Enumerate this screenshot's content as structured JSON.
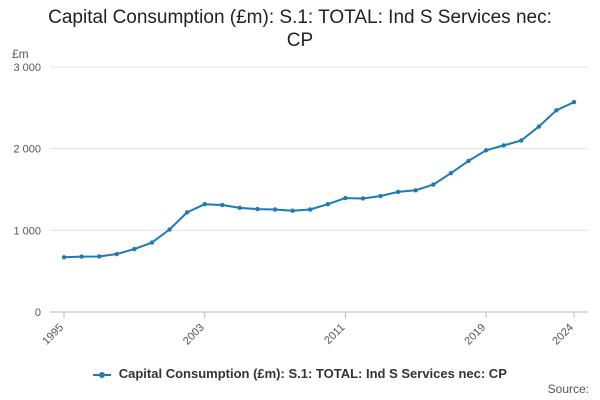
{
  "chart_data": {
    "type": "line",
    "title_line1": "Capital Consumption (£m): S.1: TOTAL: Ind S Services nec:",
    "title_line2": "CP",
    "ylabel": "£m",
    "xlabel": "",
    "x": [
      1995,
      1996,
      1997,
      1998,
      1999,
      2000,
      2001,
      2002,
      2003,
      2004,
      2005,
      2006,
      2007,
      2008,
      2009,
      2010,
      2011,
      2012,
      2013,
      2014,
      2015,
      2016,
      2017,
      2018,
      2019,
      2020,
      2021,
      2022,
      2023,
      2024
    ],
    "series": [
      {
        "name": "Capital Consumption (£m): S.1: TOTAL: Ind S Services nec: CP",
        "values": [
          670,
          678,
          680,
          710,
          770,
          850,
          1010,
          1220,
          1320,
          1310,
          1275,
          1260,
          1255,
          1240,
          1255,
          1320,
          1395,
          1390,
          1420,
          1470,
          1490,
          1560,
          1700,
          1850,
          1980,
          2040,
          2100,
          2270,
          2470,
          2570
        ]
      }
    ],
    "ylim": [
      0,
      3000
    ],
    "yticks": [
      0,
      1000,
      2000,
      3000
    ],
    "ytick_labels": [
      "0",
      "1 000",
      "2 000",
      "3 000"
    ],
    "xticks": [
      1995,
      2003,
      2011,
      2019,
      2024
    ],
    "xtick_labels": [
      "1995",
      "2003",
      "2011",
      "2019",
      "2024"
    ],
    "grid": true,
    "legend_position": "bottom-center",
    "line_color": "#1f7ab5",
    "source_label": "Source:"
  }
}
